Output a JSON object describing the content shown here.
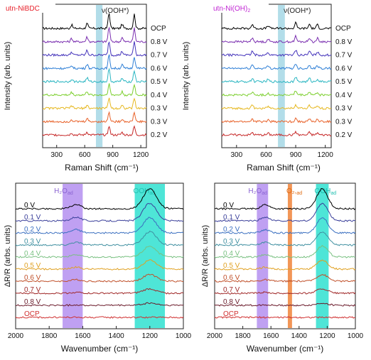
{
  "chart_data": [
    {
      "type": "line",
      "panel": "top-left",
      "tag": "utn-NiBDC",
      "tag_color": "#e8202a",
      "band_label": "ν(OOH*)",
      "band_color": "#9fd4e3",
      "band_range": [
        720,
        790
      ],
      "xlabel": "Raman Shift (cm⁻¹)",
      "ylabel": "Intensity (arb. units)",
      "xlim": [
        150,
        1260
      ],
      "xticks": [
        300,
        600,
        900,
        1200
      ],
      "peaks": [
        [
          460,
          5
        ],
        [
          625,
          7
        ],
        [
          860,
          22
        ],
        [
          1000,
          6
        ],
        [
          1130,
          20
        ]
      ],
      "series": [
        {
          "name": "OCP",
          "color": "#000000"
        },
        {
          "name": "0.8 V",
          "color": "#7b2fb0"
        },
        {
          "name": "0.7 V",
          "color": "#4433bb"
        },
        {
          "name": "0.6 V",
          "color": "#2e7fd6"
        },
        {
          "name": "0.5 V",
          "color": "#2bb6c2"
        },
        {
          "name": "0.4 V",
          "color": "#7ccf2e"
        },
        {
          "name": "0.3 V",
          "color": "#e6b820"
        },
        {
          "name": "0.3 V",
          "color": "#e8622a"
        },
        {
          "name": "0.2 V",
          "color": "#c62828"
        }
      ]
    },
    {
      "type": "line",
      "panel": "top-right",
      "tag": "utn-Ni(OH)",
      "tag_sub": "2",
      "tag_color": "#c026d3",
      "band_label": "ν(OOH*)",
      "band_color": "#9fd4e3",
      "band_range": [
        720,
        790
      ],
      "xlabel": "Raman Shift (cm⁻¹)",
      "ylabel": "Intensity (arb. units)",
      "xlim": [
        150,
        1260
      ],
      "xticks": [
        300,
        600,
        900,
        1200
      ],
      "peaks": [
        [
          460,
          6
        ],
        [
          620,
          4
        ],
        [
          900,
          8
        ],
        [
          1040,
          6
        ],
        [
          1120,
          5
        ]
      ],
      "series": [
        {
          "name": "OCP",
          "color": "#000000"
        },
        {
          "name": "0.8 V",
          "color": "#7b2fb0"
        },
        {
          "name": "0.7 V",
          "color": "#4433bb"
        },
        {
          "name": "0.6 V",
          "color": "#2e7fd6"
        },
        {
          "name": "0.5 V",
          "color": "#2bb6c2"
        },
        {
          "name": "0.4 V",
          "color": "#7ccf2e"
        },
        {
          "name": "0.3 V",
          "color": "#e6b820"
        },
        {
          "name": "0.3 V",
          "color": "#e8622a"
        },
        {
          "name": "0.2 V",
          "color": "#c62828"
        }
      ]
    },
    {
      "type": "line",
      "panel": "bottom-left",
      "xlabel": "Wavenumber (cm⁻¹)",
      "ylabel": "ΔR/R (arbs. units)",
      "xlim": [
        2000,
        1000
      ],
      "xticks": [
        2000,
        1800,
        1600,
        1400,
        1200,
        1000
      ],
      "bands": [
        {
          "label": "H₂O",
          "sub": "ad",
          "color": "#b48ff0",
          "label_color": "#8a63d2",
          "range": [
            1720,
            1600
          ]
        },
        {
          "label": "OOH",
          "sub": "ad",
          "color": "#2fe0d0",
          "label_color": "#1fbfb0",
          "range": [
            1290,
            1110
          ]
        }
      ],
      "series": [
        {
          "name": "0 V",
          "color": "#000000"
        },
        {
          "name": "0.1 V",
          "color": "#3a3f9a"
        },
        {
          "name": "0.2 V",
          "color": "#3a6fc0"
        },
        {
          "name": "0.3 V",
          "color": "#3f8fa0"
        },
        {
          "name": "0.4 V",
          "color": "#78c080"
        },
        {
          "name": "0.5 V",
          "color": "#e0a020"
        },
        {
          "name": "0.6 V",
          "color": "#c0502a"
        },
        {
          "name": "0.7 V",
          "color": "#a02828"
        },
        {
          "name": "0.8 V",
          "color": "#6a1a2a"
        },
        {
          "name": "OCP",
          "color": "#d03030"
        }
      ]
    },
    {
      "type": "line",
      "panel": "bottom-right",
      "xlabel": "Wavenumber (cm⁻¹)",
      "ylabel": "ΔR/R (arbs. units)",
      "xlim": [
        2000,
        1000
      ],
      "xticks": [
        2000,
        1800,
        1600,
        1400,
        1200,
        1000
      ],
      "bands": [
        {
          "label": "H₂O",
          "sub": "ad",
          "color": "#b48ff0",
          "label_color": "#8a63d2",
          "range": [
            1700,
            1620
          ]
        },
        {
          "label": "O₂,",
          "sub": "ad",
          "color": "#f0843a",
          "label_color": "#e06a10",
          "range": [
            1480,
            1450
          ]
        },
        {
          "label": "OOH",
          "sub": "ad",
          "color": "#2fe0d0",
          "label_color": "#1fbfb0",
          "range": [
            1280,
            1190
          ]
        }
      ],
      "series": [
        {
          "name": "0 V",
          "color": "#000000"
        },
        {
          "name": "0.1 V",
          "color": "#3a3f9a"
        },
        {
          "name": "0.2 V",
          "color": "#3a6fc0"
        },
        {
          "name": "0.3 V",
          "color": "#3f8fa0"
        },
        {
          "name": "0.4 V",
          "color": "#78c080"
        },
        {
          "name": "0.5 V",
          "color": "#e0a020"
        },
        {
          "name": "0.6 V",
          "color": "#c0502a"
        },
        {
          "name": "0.7 V",
          "color": "#a02828"
        },
        {
          "name": "0.8 V",
          "color": "#6a1a2a"
        },
        {
          "name": "OCP",
          "color": "#d03030"
        }
      ]
    }
  ]
}
